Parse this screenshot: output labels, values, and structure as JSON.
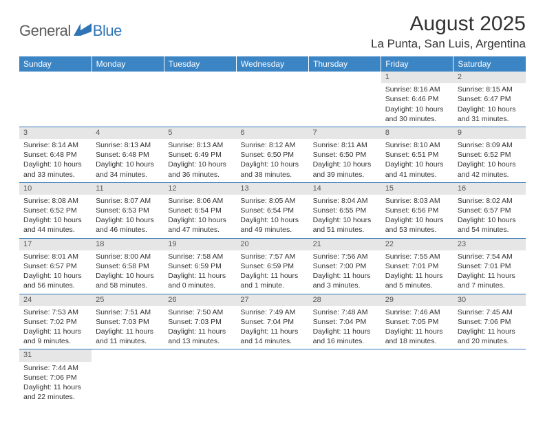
{
  "brand": {
    "text_general": "General",
    "text_blue": "Blue"
  },
  "title": "August 2025",
  "location": "La Punta, San Luis, Argentina",
  "colors": {
    "header_bg": "#3c85c5",
    "header_text": "#ffffff",
    "daynum_bg": "#e6e6e6",
    "border": "#2f74b5",
    "logo_gray": "#5b5b5b",
    "logo_blue": "#2f74b5"
  },
  "weekdays": [
    "Sunday",
    "Monday",
    "Tuesday",
    "Wednesday",
    "Thursday",
    "Friday",
    "Saturday"
  ],
  "weeks": [
    [
      {
        "empty": true
      },
      {
        "empty": true
      },
      {
        "empty": true
      },
      {
        "empty": true
      },
      {
        "empty": true
      },
      {
        "day": "1",
        "sunrise": "Sunrise: 8:16 AM",
        "sunset": "Sunset: 6:46 PM",
        "daylight1": "Daylight: 10 hours",
        "daylight2": "and 30 minutes."
      },
      {
        "day": "2",
        "sunrise": "Sunrise: 8:15 AM",
        "sunset": "Sunset: 6:47 PM",
        "daylight1": "Daylight: 10 hours",
        "daylight2": "and 31 minutes."
      }
    ],
    [
      {
        "day": "3",
        "sunrise": "Sunrise: 8:14 AM",
        "sunset": "Sunset: 6:48 PM",
        "daylight1": "Daylight: 10 hours",
        "daylight2": "and 33 minutes."
      },
      {
        "day": "4",
        "sunrise": "Sunrise: 8:13 AM",
        "sunset": "Sunset: 6:48 PM",
        "daylight1": "Daylight: 10 hours",
        "daylight2": "and 34 minutes."
      },
      {
        "day": "5",
        "sunrise": "Sunrise: 8:13 AM",
        "sunset": "Sunset: 6:49 PM",
        "daylight1": "Daylight: 10 hours",
        "daylight2": "and 36 minutes."
      },
      {
        "day": "6",
        "sunrise": "Sunrise: 8:12 AM",
        "sunset": "Sunset: 6:50 PM",
        "daylight1": "Daylight: 10 hours",
        "daylight2": "and 38 minutes."
      },
      {
        "day": "7",
        "sunrise": "Sunrise: 8:11 AM",
        "sunset": "Sunset: 6:50 PM",
        "daylight1": "Daylight: 10 hours",
        "daylight2": "and 39 minutes."
      },
      {
        "day": "8",
        "sunrise": "Sunrise: 8:10 AM",
        "sunset": "Sunset: 6:51 PM",
        "daylight1": "Daylight: 10 hours",
        "daylight2": "and 41 minutes."
      },
      {
        "day": "9",
        "sunrise": "Sunrise: 8:09 AM",
        "sunset": "Sunset: 6:52 PM",
        "daylight1": "Daylight: 10 hours",
        "daylight2": "and 42 minutes."
      }
    ],
    [
      {
        "day": "10",
        "sunrise": "Sunrise: 8:08 AM",
        "sunset": "Sunset: 6:52 PM",
        "daylight1": "Daylight: 10 hours",
        "daylight2": "and 44 minutes."
      },
      {
        "day": "11",
        "sunrise": "Sunrise: 8:07 AM",
        "sunset": "Sunset: 6:53 PM",
        "daylight1": "Daylight: 10 hours",
        "daylight2": "and 46 minutes."
      },
      {
        "day": "12",
        "sunrise": "Sunrise: 8:06 AM",
        "sunset": "Sunset: 6:54 PM",
        "daylight1": "Daylight: 10 hours",
        "daylight2": "and 47 minutes."
      },
      {
        "day": "13",
        "sunrise": "Sunrise: 8:05 AM",
        "sunset": "Sunset: 6:54 PM",
        "daylight1": "Daylight: 10 hours",
        "daylight2": "and 49 minutes."
      },
      {
        "day": "14",
        "sunrise": "Sunrise: 8:04 AM",
        "sunset": "Sunset: 6:55 PM",
        "daylight1": "Daylight: 10 hours",
        "daylight2": "and 51 minutes."
      },
      {
        "day": "15",
        "sunrise": "Sunrise: 8:03 AM",
        "sunset": "Sunset: 6:56 PM",
        "daylight1": "Daylight: 10 hours",
        "daylight2": "and 53 minutes."
      },
      {
        "day": "16",
        "sunrise": "Sunrise: 8:02 AM",
        "sunset": "Sunset: 6:57 PM",
        "daylight1": "Daylight: 10 hours",
        "daylight2": "and 54 minutes."
      }
    ],
    [
      {
        "day": "17",
        "sunrise": "Sunrise: 8:01 AM",
        "sunset": "Sunset: 6:57 PM",
        "daylight1": "Daylight: 10 hours",
        "daylight2": "and 56 minutes."
      },
      {
        "day": "18",
        "sunrise": "Sunrise: 8:00 AM",
        "sunset": "Sunset: 6:58 PM",
        "daylight1": "Daylight: 10 hours",
        "daylight2": "and 58 minutes."
      },
      {
        "day": "19",
        "sunrise": "Sunrise: 7:58 AM",
        "sunset": "Sunset: 6:59 PM",
        "daylight1": "Daylight: 11 hours",
        "daylight2": "and 0 minutes."
      },
      {
        "day": "20",
        "sunrise": "Sunrise: 7:57 AM",
        "sunset": "Sunset: 6:59 PM",
        "daylight1": "Daylight: 11 hours",
        "daylight2": "and 1 minute."
      },
      {
        "day": "21",
        "sunrise": "Sunrise: 7:56 AM",
        "sunset": "Sunset: 7:00 PM",
        "daylight1": "Daylight: 11 hours",
        "daylight2": "and 3 minutes."
      },
      {
        "day": "22",
        "sunrise": "Sunrise: 7:55 AM",
        "sunset": "Sunset: 7:01 PM",
        "daylight1": "Daylight: 11 hours",
        "daylight2": "and 5 minutes."
      },
      {
        "day": "23",
        "sunrise": "Sunrise: 7:54 AM",
        "sunset": "Sunset: 7:01 PM",
        "daylight1": "Daylight: 11 hours",
        "daylight2": "and 7 minutes."
      }
    ],
    [
      {
        "day": "24",
        "sunrise": "Sunrise: 7:53 AM",
        "sunset": "Sunset: 7:02 PM",
        "daylight1": "Daylight: 11 hours",
        "daylight2": "and 9 minutes."
      },
      {
        "day": "25",
        "sunrise": "Sunrise: 7:51 AM",
        "sunset": "Sunset: 7:03 PM",
        "daylight1": "Daylight: 11 hours",
        "daylight2": "and 11 minutes."
      },
      {
        "day": "26",
        "sunrise": "Sunrise: 7:50 AM",
        "sunset": "Sunset: 7:03 PM",
        "daylight1": "Daylight: 11 hours",
        "daylight2": "and 13 minutes."
      },
      {
        "day": "27",
        "sunrise": "Sunrise: 7:49 AM",
        "sunset": "Sunset: 7:04 PM",
        "daylight1": "Daylight: 11 hours",
        "daylight2": "and 14 minutes."
      },
      {
        "day": "28",
        "sunrise": "Sunrise: 7:48 AM",
        "sunset": "Sunset: 7:04 PM",
        "daylight1": "Daylight: 11 hours",
        "daylight2": "and 16 minutes."
      },
      {
        "day": "29",
        "sunrise": "Sunrise: 7:46 AM",
        "sunset": "Sunset: 7:05 PM",
        "daylight1": "Daylight: 11 hours",
        "daylight2": "and 18 minutes."
      },
      {
        "day": "30",
        "sunrise": "Sunrise: 7:45 AM",
        "sunset": "Sunset: 7:06 PM",
        "daylight1": "Daylight: 11 hours",
        "daylight2": "and 20 minutes."
      }
    ],
    [
      {
        "day": "31",
        "sunrise": "Sunrise: 7:44 AM",
        "sunset": "Sunset: 7:06 PM",
        "daylight1": "Daylight: 11 hours",
        "daylight2": "and 22 minutes."
      },
      {
        "empty": true
      },
      {
        "empty": true
      },
      {
        "empty": true
      },
      {
        "empty": true
      },
      {
        "empty": true
      },
      {
        "empty": true
      }
    ]
  ]
}
